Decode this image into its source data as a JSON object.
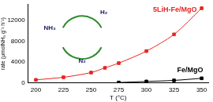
{
  "chart_data": {
    "type": "line",
    "x_label": "T (°C)",
    "y_label": "rate (μmolNH₃ g⁻¹ h⁻¹)",
    "annotations": [
      "NH₃",
      "H₂",
      "N₂"
    ],
    "xlim": [
      193,
      356
    ],
    "xticks": [
      200,
      225,
      250,
      275,
      300,
      325,
      350
    ],
    "ylim": [
      0,
      15000
    ],
    "yticks": [
      0,
      4000,
      8000,
      12000
    ],
    "grid": false,
    "series": [
      {
        "name": "5LiH-Fe/MgO",
        "color": "#e8251f",
        "marker": "square",
        "line_style": "solid",
        "x": [
          200,
          225,
          250,
          262.5,
          275,
          300,
          325,
          350
        ],
        "values": [
          600,
          1100,
          2000,
          2900,
          3800,
          6100,
          9300,
          14300
        ]
      },
      {
        "name": "Fe/MgO",
        "color": "#000000",
        "marker": "square",
        "line_style": "solid",
        "x": [
          275,
          300,
          325,
          350
        ],
        "values": [
          100,
          300,
          500,
          900
        ]
      }
    ]
  }
}
